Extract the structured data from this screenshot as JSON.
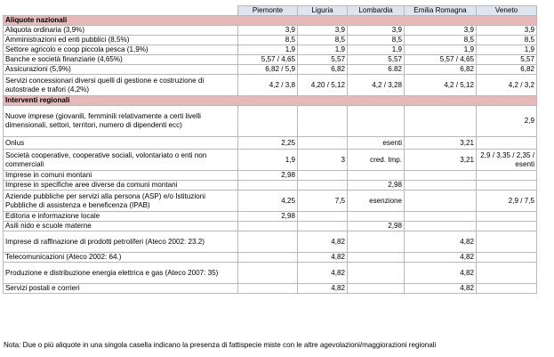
{
  "columns": [
    "Piemonte",
    "Liguria",
    "Lombardia",
    "Emilia Romagna",
    "Veneto"
  ],
  "sections": [
    {
      "title": "Aliquote nazionali",
      "rows": [
        {
          "label": "Aliquota ordinaria (3,9%)",
          "values": [
            "3,9",
            "3,9",
            "3,9",
            "3,9",
            "3,9"
          ]
        },
        {
          "label": "Amministrazioni ed enti pubblici (8,5%)",
          "values": [
            "8,5",
            "8,5",
            "8,5",
            "8,5",
            "8,5"
          ]
        },
        {
          "label": "Settore agricolo e coop piccola pesca (1,9%)",
          "values": [
            "1,9",
            "1,9",
            "1,9",
            "1,9",
            "1,9"
          ]
        },
        {
          "label": "Banche e società finanziarie (4,65%)",
          "values": [
            "5,57 / 4,65",
            "5,57",
            "5,57",
            "5,57 / 4,65",
            "5,57"
          ]
        },
        {
          "label": "Assicurazioni (5,9%)",
          "values": [
            "6,82 / 5,9",
            "6,82",
            "6.82",
            "6,82",
            "6,82"
          ]
        },
        {
          "label": "Servizi concessionari diversi quelli di gestione e costruzione di autostrade e trafori (4,2%)",
          "values": [
            "4,2 / 3,8",
            "4,20 / 5,12",
            "4,2 / 3,28",
            "4,2 / 5,12",
            "4,2 / 3,2"
          ]
        }
      ]
    },
    {
      "title": "Interventi regionali",
      "rows": [
        {
          "label": "Nuove imprese (giovanili, femminili relativamente a certi livelli dimensionali, settori, territori, numero di dipendenti ecc)",
          "values": [
            "",
            "",
            "",
            "",
            "2,9"
          ]
        },
        {
          "label": "Onlus",
          "values": [
            "2,25",
            "",
            "esenti",
            "3,21",
            ""
          ]
        },
        {
          "label": "Società cooperative, cooperative sociali, volontariato o enti non commerciali",
          "values": [
            "1,9",
            "3",
            "cred. Imp.",
            "3,21",
            "2,9 / 3,35 / 2,35 / esenti"
          ]
        },
        {
          "label": "Imprese in comuni montani",
          "values": [
            "2,98",
            "",
            "",
            "",
            ""
          ]
        },
        {
          "label": "Imprese in specifiche aree diverse da comuni montani",
          "values": [
            "",
            "",
            "2,98",
            "",
            ""
          ]
        },
        {
          "label": "Aziende pubbliche per servizi alla persona (ASP) e/o Istituzioni Pubbliche di assistenza e beneficenza (IPAB)",
          "values": [
            "4,25",
            "7,5",
            "esenzione",
            "",
            "2,9 / 7,5"
          ]
        },
        {
          "label": "Editoria e informazione locale",
          "values": [
            "2,98",
            "",
            "",
            "",
            ""
          ]
        },
        {
          "label": "Asili nido e scuole materne",
          "values": [
            "",
            "",
            "2,98",
            "",
            ""
          ]
        },
        {
          "label": "Imprese di raffinazione di prodotti petroliferi (Ateco 2002: 23.2)",
          "values": [
            "",
            "4,82",
            "",
            "4,82",
            ""
          ]
        },
        {
          "label": "Telecomunicazioni (Ateco 2002: 64.)",
          "values": [
            "",
            "4,82",
            "",
            "4,82",
            ""
          ]
        },
        {
          "label": "Produzione e distribuzione energia elettrica e gas (Ateco 2007: 35)",
          "values": [
            "",
            "4,82",
            "",
            "4,82",
            ""
          ]
        },
        {
          "label": "Servizi postali e corrieri",
          "values": [
            "",
            "4,82",
            "",
            "4,82",
            ""
          ]
        }
      ]
    }
  ],
  "note": "Nota: Due o più aliquote in una singola casella indicano la presenza di fattispecie miste con le altre agevolazioni/maggiorazioni regionali"
}
